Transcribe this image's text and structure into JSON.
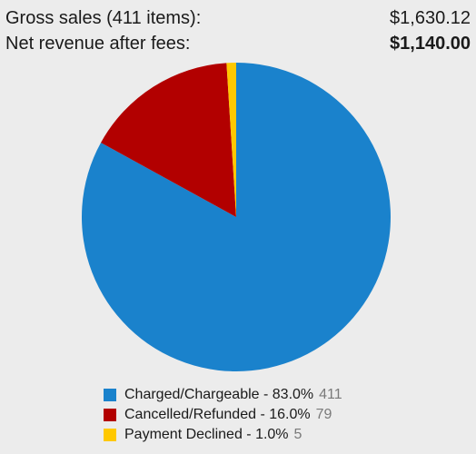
{
  "summary": {
    "gross_label": "Gross sales (411 items):",
    "gross_value": "$1,630.12",
    "net_label": "Net revenue after fees:",
    "net_value": "$1,140.00"
  },
  "chart_data": {
    "type": "pie",
    "categories": [
      "Charged/Chargeable",
      "Cancelled/Refunded",
      "Payment Declined"
    ],
    "values": [
      83.0,
      16.0,
      1.0
    ],
    "counts": [
      411,
      79,
      5
    ],
    "colors": [
      "#1a82cc",
      "#b20000",
      "#ffc800"
    ],
    "title": "",
    "start_angle_deg": 0,
    "direction": "clockwise"
  },
  "legend": [
    {
      "label": "Charged/Chargeable - 83.0%",
      "count": "411",
      "color": "#1a82cc"
    },
    {
      "label": "Cancelled/Refunded - 16.0%",
      "count": "79",
      "color": "#b20000"
    },
    {
      "label": "Payment Declined - 1.0%",
      "count": "5",
      "color": "#ffc800"
    }
  ]
}
